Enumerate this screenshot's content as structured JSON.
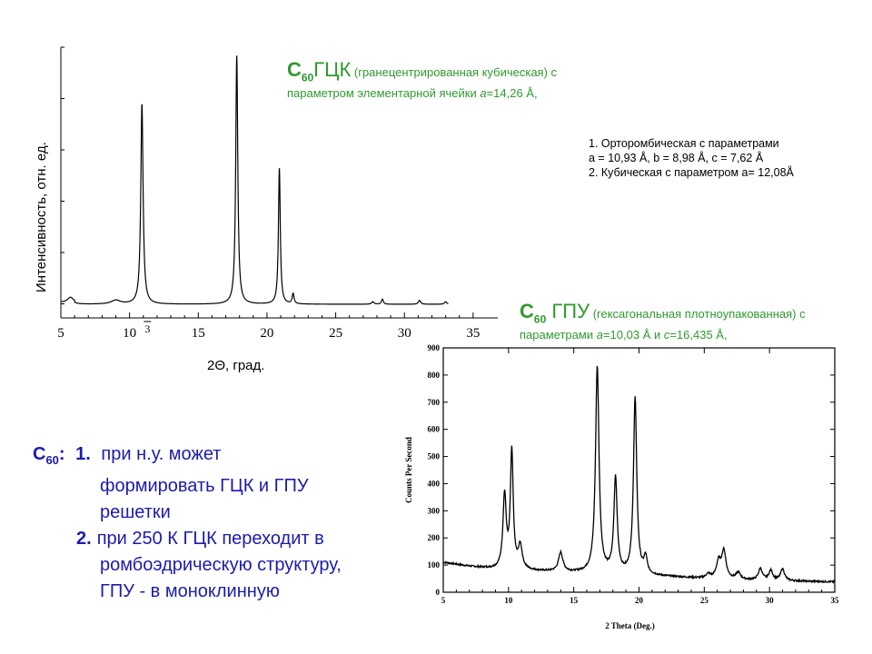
{
  "fcc": {
    "title_formula": "C",
    "title_sub": "60",
    "title_lattice": "ГЦК",
    "title_desc": " (гранецентрированная кубическая) с",
    "title_line2_pre": "параметром элементарной ячейки ",
    "title_line2_var": "a",
    "title_line2_val": "=14,26 Å,"
  },
  "hcp": {
    "title_formula": "C",
    "title_sub": "60",
    "title_lattice": " ГПУ",
    "title_desc": " (гексагональная плотноупакованная) с",
    "title_line2_pre": "параметрами ",
    "a_var": "a",
    "a_val": "=10,03 Å и ",
    "c_var": "c",
    "c_val": "=16,435 Å,"
  },
  "notes": {
    "line1": "1. Орторомбическая с параметрами",
    "line2": "a = 10,93 Å, b = 8,98 Å, c = 7,62 Å",
    "line3": "2. Кубическая с параметром a= 12,08Å"
  },
  "bottom": {
    "formula": "C",
    "sub": "60",
    "colon": ":",
    "item1_num": "1.",
    "item1_line1": "при н.у. может",
    "item1_line2": "формировать ГЦК и ГПУ",
    "item1_line3": "решетки",
    "item2_num": "2.",
    "item2_line1": "при 250 К ГЦК переходит в",
    "item2_line2": "ромбоэдрическую структуру,",
    "item2_line3": "ГПУ - в моноклинную"
  },
  "chart_data": [
    {
      "type": "line",
      "ylabel": "Интенсивность, отн. ед.",
      "xlabel": "2Θ, град.",
      "xlim": [
        5,
        36
      ],
      "x_ticks": [
        "5",
        "10",
        "15",
        "20",
        "25",
        "30",
        "35"
      ],
      "annotation": "3",
      "annotation_x": 11.3,
      "peaks": [
        {
          "x": 5.7,
          "h": 0.02,
          "w": 0.25
        },
        {
          "x": 9.0,
          "h": 0.015,
          "w": 0.4
        },
        {
          "x": 10.9,
          "h": 0.78,
          "w": 0.1
        },
        {
          "x": 17.8,
          "h": 0.97,
          "w": 0.09
        },
        {
          "x": 20.9,
          "h": 0.53,
          "w": 0.08
        },
        {
          "x": 21.9,
          "h": 0.04,
          "w": 0.08
        },
        {
          "x": 27.7,
          "h": 0.01,
          "w": 0.1
        },
        {
          "x": 28.4,
          "h": 0.02,
          "w": 0.08
        },
        {
          "x": 31.1,
          "h": 0.015,
          "w": 0.1
        },
        {
          "x": 33.0,
          "h": 0.01,
          "w": 0.1
        }
      ],
      "x_end": 33.2
    },
    {
      "type": "line",
      "xlabel": "2 Theta (Deg.)",
      "ylabel": "Counts Per Second",
      "xlim": [
        5,
        35
      ],
      "ylim": [
        0,
        900
      ],
      "x_ticks": [
        "5",
        "10",
        "15",
        "20",
        "25",
        "30",
        "35"
      ],
      "y_ticks": [
        "0",
        "100",
        "200",
        "300",
        "400",
        "500",
        "600",
        "700",
        "800",
        "900"
      ],
      "baseline": [
        [
          5,
          110
        ],
        [
          7,
          95
        ],
        [
          9,
          85
        ],
        [
          12,
          78
        ],
        [
          15,
          72
        ],
        [
          18,
          68
        ],
        [
          21,
          60
        ],
        [
          25,
          50
        ],
        [
          28,
          45
        ],
        [
          31,
          42
        ],
        [
          35,
          38
        ]
      ],
      "peaks": [
        {
          "x": 9.7,
          "h": 270,
          "w": 0.15
        },
        {
          "x": 10.25,
          "h": 430,
          "w": 0.13
        },
        {
          "x": 10.9,
          "h": 85,
          "w": 0.18
        },
        {
          "x": 14.0,
          "h": 70,
          "w": 0.2
        },
        {
          "x": 16.8,
          "h": 760,
          "w": 0.16
        },
        {
          "x": 18.2,
          "h": 350,
          "w": 0.15
        },
        {
          "x": 19.7,
          "h": 650,
          "w": 0.15
        },
        {
          "x": 20.5,
          "h": 60,
          "w": 0.15
        },
        {
          "x": 25.3,
          "h": 15,
          "w": 0.2
        },
        {
          "x": 26.1,
          "h": 60,
          "w": 0.2
        },
        {
          "x": 26.5,
          "h": 100,
          "w": 0.2
        },
        {
          "x": 27.6,
          "h": 25,
          "w": 0.2
        },
        {
          "x": 29.3,
          "h": 42,
          "w": 0.18
        },
        {
          "x": 30.1,
          "h": 35,
          "w": 0.18
        },
        {
          "x": 31.0,
          "h": 43,
          "w": 0.18
        }
      ]
    }
  ]
}
